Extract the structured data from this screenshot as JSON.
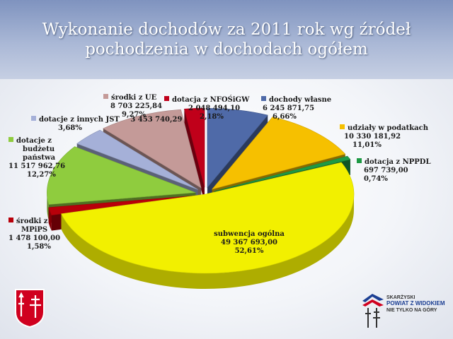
{
  "header": {
    "title_line1": "Wykonanie dochodów za 2011 rok wg źródeł",
    "title_line2": "pochodzenia w dochodach ogółem"
  },
  "chart_data": {
    "type": "pie",
    "title": "Wykonanie dochodów za 2011 rok wg źródeł pochodzenia w dochodach ogółem",
    "slices": [
      {
        "name": "dochody własne",
        "value": "6 245 871,75",
        "percent": "6,66%",
        "color": "#4f6aa8"
      },
      {
        "name": "udziały w podatkach",
        "value": "10 330 181,92",
        "percent": "11,01%",
        "color": "#f6c000"
      },
      {
        "name": "dotacja z NPPDL",
        "value": "697 739,00",
        "percent": "0,74%",
        "color": "#1e9a44"
      },
      {
        "name": "subwencja ogólna",
        "value": "49 367 693,00",
        "percent": "52,61%",
        "color": "#f2f000"
      },
      {
        "name": "środki z MPiPS",
        "value": "1 478 100,00",
        "percent": "1,58%",
        "color": "#b8000a"
      },
      {
        "name": "dotacje z budżetu państwa",
        "value": "11 517 962,76",
        "percent": "12,27%",
        "color": "#8fcc3e"
      },
      {
        "name": "dotacje z innych JST",
        "value": "3 453 740,29",
        "percent": "3,68%",
        "color": "#a5b0d8"
      },
      {
        "name": "środki z UE",
        "value": "8 703 225,84",
        "percent": "9,27%",
        "color": "#c49a98"
      },
      {
        "name": "dotacja z NFOŚiGW",
        "value": "2 048 494,10",
        "percent": "2,18%",
        "color": "#c0001a"
      }
    ]
  },
  "labels": {
    "dochody_wlasne": "dochody własne",
    "udzialy": "udziały w podatkach",
    "nppdl": "dotacja z NPPDL",
    "subwencja": "subwencja ogólna",
    "mpips_1": "środki z",
    "mpips_2": "MPiPS",
    "budzet_1": "dotacje z",
    "budzet_2": "budżetu",
    "budzet_3": "państwa",
    "jst": "dotacje z innych JST",
    "ue": "środki z UE",
    "nfos": "dotacja z NFOŚiGW"
  },
  "logo": {
    "line1": "SKARŻYSKI",
    "line2": "POWIAT Z WIDOKIEM",
    "line3": "NIE TYLKO NA GÓRY"
  }
}
